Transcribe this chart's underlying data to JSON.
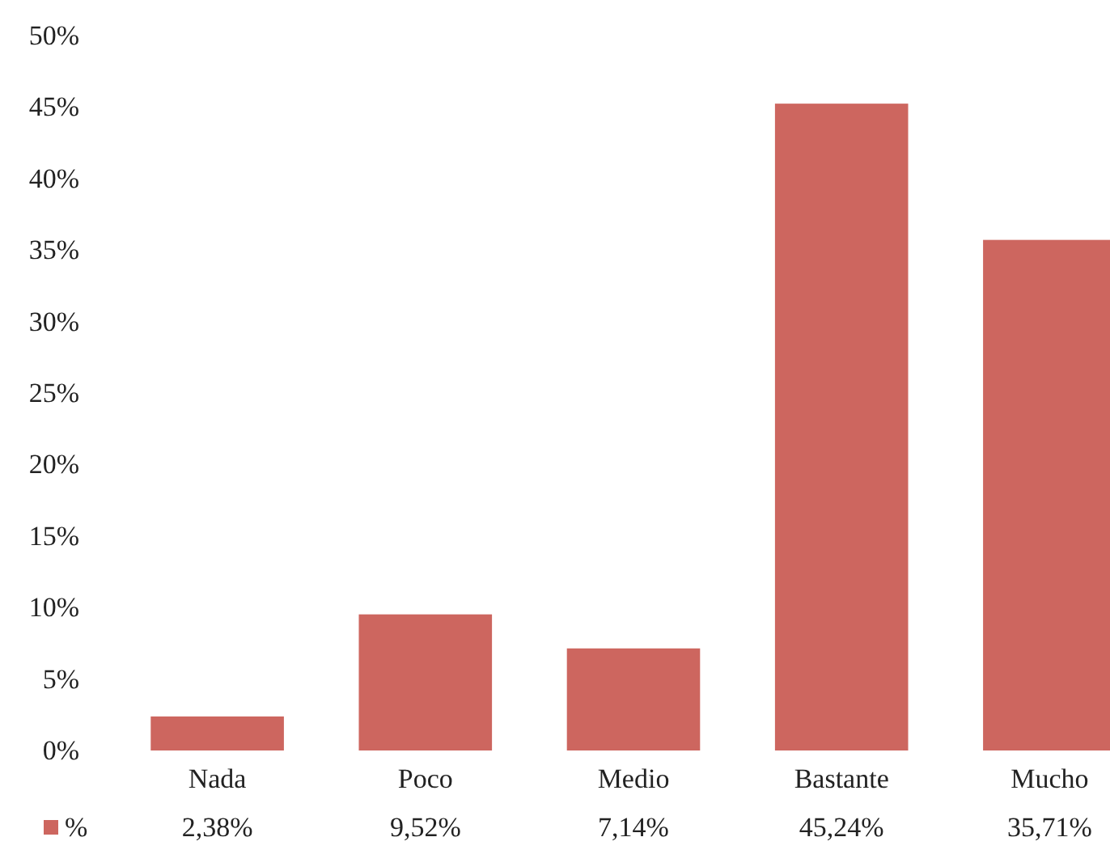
{
  "chart_data": {
    "type": "bar",
    "categories": [
      "Nada",
      "Poco",
      "Medio",
      "Bastante",
      "Mucho"
    ],
    "series": [
      {
        "name": "%",
        "color": "#cd665f",
        "values": [
          2.38,
          9.52,
          7.14,
          45.24,
          35.71
        ],
        "value_labels": [
          "2,38%",
          "9,52%",
          "7,14%",
          "45,24%",
          "35,71%"
        ]
      }
    ],
    "ylim": [
      0,
      50
    ],
    "yticks": [
      {
        "value": 0,
        "label": "0%"
      },
      {
        "value": 5,
        "label": "5%"
      },
      {
        "value": 10,
        "label": "10%"
      },
      {
        "value": 15,
        "label": "15%"
      },
      {
        "value": 20,
        "label": "20%"
      },
      {
        "value": 25,
        "label": "25%"
      },
      {
        "value": 30,
        "label": "30%"
      },
      {
        "value": 35,
        "label": "35%"
      },
      {
        "value": 40,
        "label": "40%"
      },
      {
        "value": 45,
        "label": "45%"
      },
      {
        "value": 50,
        "label": "50%"
      }
    ],
    "legend": "bottom left"
  }
}
